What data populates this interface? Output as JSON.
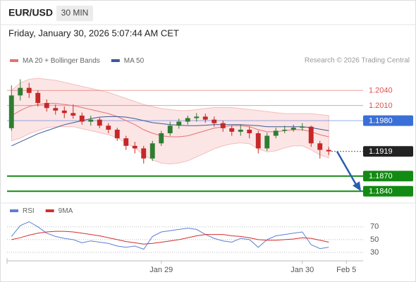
{
  "header": {
    "symbol": "EUR/USD",
    "timeframe": "30 MIN",
    "timestamp": "Friday, January 30, 2026 5:07:44 AM CET"
  },
  "chart_data": [
    {
      "type": "candlestick",
      "source": "Research © 2026 Trading Central",
      "ylim": [
        1.1825,
        1.2085
      ],
      "candles": {
        "up_color": "#2e7d32",
        "down_color": "#c62828",
        "open": [
          1.1965,
          1.203,
          1.2045,
          1.2035,
          1.2015,
          1.2005,
          1.2,
          1.1995,
          1.199,
          1.1978,
          1.1982,
          1.197,
          1.1962,
          1.1945,
          1.193,
          1.1925,
          1.1905,
          1.1935,
          1.1955,
          1.197,
          1.1978,
          1.1985,
          1.1988,
          1.1982,
          1.1975,
          1.1965,
          1.1958,
          1.1962,
          1.1955,
          1.1925,
          1.195,
          1.196,
          1.1962,
          1.1966,
          1.1968,
          1.1935,
          1.1922,
          null,
          null,
          null
        ],
        "high": [
          1.205,
          1.2062,
          1.2055,
          1.204,
          1.2022,
          1.2012,
          1.2008,
          1.2012,
          1.1996,
          1.199,
          1.1986,
          1.1975,
          1.1966,
          1.195,
          1.1938,
          1.193,
          1.194,
          1.196,
          1.1978,
          1.1984,
          1.199,
          1.1995,
          1.1994,
          1.1988,
          1.198,
          1.197,
          1.1972,
          1.1968,
          1.196,
          1.1956,
          1.1966,
          1.197,
          1.1972,
          1.1975,
          1.197,
          1.194,
          1.1928,
          null,
          null,
          null
        ],
        "low": [
          1.196,
          1.202,
          1.2025,
          1.2008,
          1.1998,
          1.1992,
          1.1985,
          1.1984,
          1.1972,
          1.197,
          1.1965,
          1.1955,
          1.194,
          1.1922,
          1.1915,
          1.1895,
          1.19,
          1.193,
          1.195,
          1.1964,
          1.1972,
          1.1978,
          1.1976,
          1.1968,
          1.1958,
          1.195,
          1.195,
          1.1945,
          1.1915,
          1.192,
          1.1945,
          1.1955,
          1.1958,
          1.196,
          1.1928,
          1.1905,
          1.1912,
          null,
          null,
          null
        ],
        "close": [
          1.203,
          1.2045,
          1.2035,
          1.2015,
          1.2005,
          1.2,
          1.1995,
          1.199,
          1.1978,
          1.1982,
          1.197,
          1.1962,
          1.1945,
          1.193,
          1.1925,
          1.1905,
          1.1935,
          1.1955,
          1.197,
          1.1978,
          1.1985,
          1.1988,
          1.1982,
          1.1975,
          1.1965,
          1.1958,
          1.1962,
          1.1955,
          1.1925,
          1.195,
          1.196,
          1.1962,
          1.1966,
          1.1968,
          1.1935,
          1.1922,
          1.1919,
          null,
          null,
          null
        ]
      },
      "series": [
        {
          "name": "MA 20 + Bollinger Bands",
          "color": "#e57373",
          "band_color": "#fbdada",
          "values": [
            1.199,
            1.2,
            1.2008,
            1.2012,
            1.2014,
            1.2014,
            1.2012,
            1.201,
            1.2006,
            1.2002,
            1.1998,
            1.1994,
            1.1988,
            1.198,
            1.1972,
            1.1962,
            1.1955,
            1.195,
            1.1948,
            1.1948,
            1.195,
            1.1955,
            1.196,
            1.1965,
            1.1968,
            1.197,
            1.197,
            1.1968,
            1.1962,
            1.1958,
            1.1958,
            1.196,
            1.1962,
            1.1962,
            1.1958,
            1.1952,
            1.1948,
            null,
            null,
            null
          ],
          "upper": [
            1.204,
            1.2055,
            1.2062,
            1.2064,
            1.2062,
            1.206,
            1.2056,
            1.2052,
            1.2048,
            1.2044,
            1.204,
            1.2036,
            1.203,
            1.2024,
            1.2018,
            1.2012,
            1.2008,
            1.2004,
            1.2002,
            1.2,
            1.2,
            1.2002,
            1.2004,
            1.2006,
            1.2006,
            1.2006,
            1.2004,
            1.2002,
            1.2,
            1.1998,
            1.1996,
            1.1994,
            1.1994,
            1.1994,
            1.1994,
            1.1992,
            1.199,
            null,
            null,
            null
          ],
          "lower": [
            1.194,
            1.1945,
            1.1954,
            1.196,
            1.1966,
            1.1968,
            1.1968,
            1.1968,
            1.1964,
            1.196,
            1.1956,
            1.1952,
            1.1946,
            1.1936,
            1.1926,
            1.1912,
            1.1902,
            1.1896,
            1.1894,
            1.1896,
            1.19,
            1.1908,
            1.1916,
            1.1924,
            1.193,
            1.1934,
            1.1936,
            1.1934,
            1.1924,
            1.1918,
            1.192,
            1.1926,
            1.193,
            1.193,
            1.1922,
            1.1912,
            1.1906,
            null,
            null,
            null
          ]
        },
        {
          "name": "MA 50",
          "color": "#3b5998",
          "values": [
            1.193,
            1.1938,
            1.1946,
            1.1954,
            1.196,
            1.1966,
            1.1972,
            1.1976,
            1.198,
            1.1984,
            1.1987,
            1.1988,
            1.1988,
            1.1987,
            1.1984,
            1.198,
            1.1976,
            1.1974,
            1.1972,
            1.1971,
            1.197,
            1.197,
            1.1971,
            1.1972,
            1.1972,
            1.1972,
            1.1972,
            1.1971,
            1.197,
            1.1968,
            1.1968,
            1.1968,
            1.1968,
            1.1968,
            1.1966,
            1.1963,
            1.196,
            null,
            null,
            null
          ]
        }
      ],
      "levels": [
        {
          "value": 1.204,
          "label": "1.2040",
          "color": "#d9534f",
          "boxed": false,
          "line": "thin"
        },
        {
          "value": 1.201,
          "label": "1.2010",
          "color": "#d9534f",
          "boxed": false,
          "line": "thin"
        },
        {
          "value": 1.198,
          "label": "1.1980",
          "color": "#3a6fd8",
          "boxed": true,
          "line": "thin"
        },
        {
          "value": 1.1919,
          "label": "1.1919",
          "color": "#222222",
          "boxed": true,
          "line": "dotted"
        },
        {
          "value": 1.187,
          "label": "1.1870",
          "color": "#138a13",
          "boxed": true,
          "line": "thick"
        },
        {
          "value": 1.184,
          "label": "1.1840",
          "color": "#138a13",
          "boxed": true,
          "line": "thick"
        }
      ]
    },
    {
      "type": "line",
      "categories": [
        null,
        null,
        null,
        null,
        null,
        null,
        null,
        null,
        null,
        null,
        null,
        null,
        null,
        null,
        null,
        null,
        null,
        "Jan 29",
        null,
        null,
        null,
        null,
        null,
        null,
        null,
        null,
        null,
        null,
        null,
        null,
        null,
        null,
        null,
        "Jan 30",
        null,
        null,
        null,
        null,
        "Feb 5",
        null
      ],
      "ylim": [
        19,
        94
      ],
      "yticks": [
        70,
        50,
        30
      ],
      "grid": true,
      "series": [
        {
          "name": "RSI",
          "color": "#5b7fd6",
          "values": [
            55,
            72,
            78,
            70,
            60,
            55,
            52,
            50,
            45,
            48,
            46,
            44,
            40,
            38,
            40,
            35,
            55,
            62,
            64,
            66,
            68,
            66,
            58,
            52,
            48,
            46,
            52,
            50,
            38,
            50,
            56,
            58,
            60,
            62,
            42,
            36,
            38,
            null,
            null,
            null
          ]
        },
        {
          "name": "9MA",
          "color": "#d32f2f",
          "values": [
            50,
            53,
            57,
            60,
            62,
            63,
            63,
            62,
            60,
            58,
            56,
            53,
            50,
            47,
            45,
            43,
            44,
            46,
            48,
            50,
            53,
            56,
            58,
            58,
            58,
            56,
            55,
            53,
            50,
            49,
            49,
            50,
            51,
            53,
            52,
            49,
            46,
            null,
            null,
            null
          ]
        }
      ]
    }
  ]
}
